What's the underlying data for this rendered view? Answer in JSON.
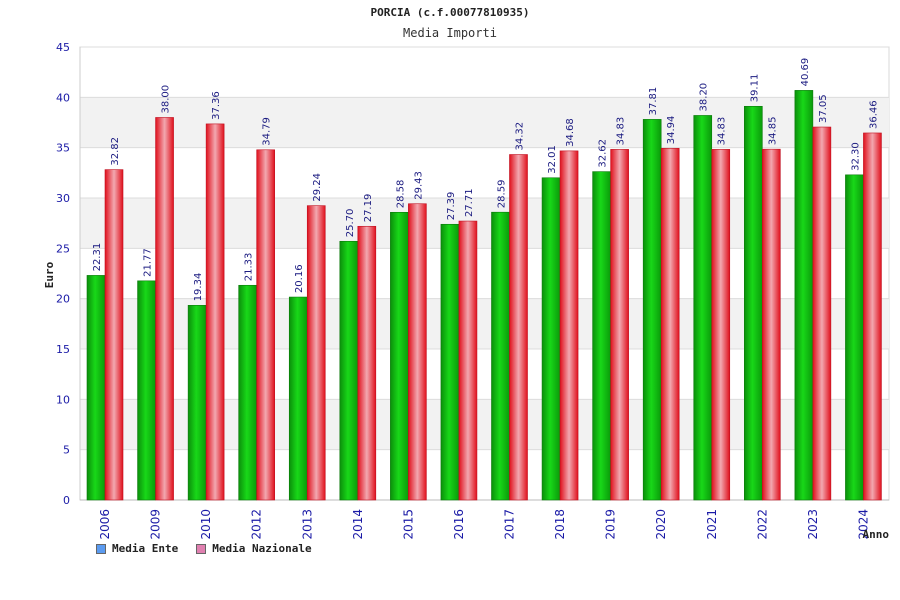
{
  "chart_data": {
    "type": "bar",
    "title": "PORCIA (c.f.00077810935)",
    "subtitle": "Media Importi",
    "xlabel": "Anno",
    "ylabel": "Euro",
    "ylim": [
      0,
      45
    ],
    "yticks": [
      0,
      5,
      10,
      15,
      20,
      25,
      30,
      35,
      40,
      45
    ],
    "categories": [
      "2006",
      "2009",
      "2010",
      "2012",
      "2013",
      "2014",
      "2015",
      "2016",
      "2017",
      "2018",
      "2019",
      "2020",
      "2021",
      "2022",
      "2023",
      "2024"
    ],
    "series": [
      {
        "name": "Media Ente",
        "values": [
          22.31,
          21.77,
          19.34,
          21.33,
          20.16,
          25.7,
          28.58,
          27.39,
          28.59,
          32.01,
          32.62,
          37.81,
          38.2,
          39.11,
          40.69,
          32.3
        ],
        "labels": [
          "22.31",
          "21.77",
          "19.34",
          "21.33",
          "20.16",
          "25.70",
          "28.58",
          "27.39",
          "28.59",
          "32.01",
          "32.62",
          "37.81",
          "38.20",
          "39.11",
          "40.69",
          "32.30"
        ],
        "color": "#12c012",
        "legend_color": "#5b9bf0"
      },
      {
        "name": "Media Nazionale",
        "values": [
          32.82,
          38.0,
          37.36,
          34.79,
          29.24,
          27.19,
          29.43,
          27.71,
          34.32,
          34.68,
          34.83,
          34.94,
          34.83,
          34.85,
          37.05,
          36.46
        ],
        "labels": [
          "32.82",
          "38.00",
          "37.36",
          "34.79",
          "29.24",
          "27.19",
          "29.43",
          "27.71",
          "34.32",
          "34.68",
          "34.83",
          "34.94",
          "34.83",
          "34.85",
          "37.05",
          "36.46"
        ],
        "color": "#ee2233",
        "legend_color": "#e080b0"
      }
    ]
  }
}
